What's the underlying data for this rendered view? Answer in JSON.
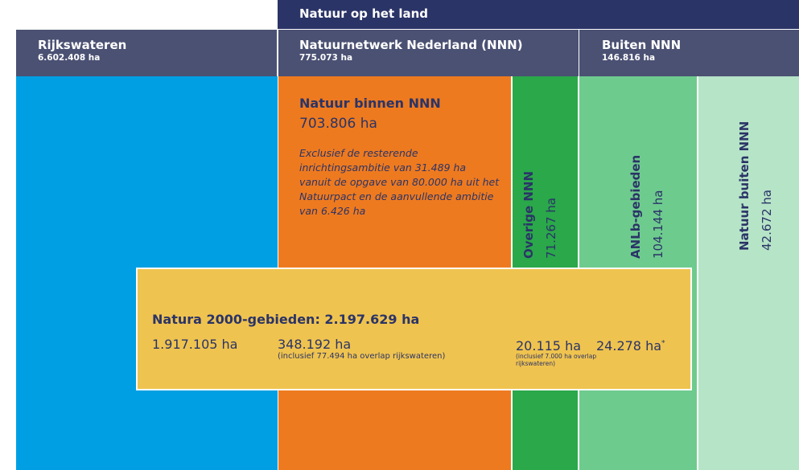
{
  "header": {
    "band": "Natuur op het land",
    "cells": [
      {
        "title": "Rijkswateren",
        "area": "6.602.408 ha"
      },
      {
        "title": "Natuurnetwerk Nederland (NNN)",
        "area": "775.073 ha"
      },
      {
        "title": "Buiten NNN",
        "area": "146.816 ha"
      }
    ]
  },
  "blocks": [
    {
      "title": "Natuur binnen NNN",
      "area": "703.806 ha",
      "note": "Exclusief de resterende inrichtingsambitie van 31.489 ha vanuit de opgave van 80.000 ha uit het Natuurpact en de aanvullende ambitie van 6.426 ha"
    },
    {
      "title": "Overige NNN",
      "area": "71.267 ha"
    },
    {
      "title": "ANLb-gebieden",
      "area": "104.144 ha"
    },
    {
      "title": "Natuur buiten NNN",
      "area": "42.672 ha"
    }
  ],
  "natura": {
    "title": "Natura 2000-gebieden: 2.197.629 ha",
    "parts": [
      {
        "area": "1.917.105 ha"
      },
      {
        "area": "348.192 ha",
        "note": "(inclusief 77.494 ha overlap rijkswateren)"
      },
      {
        "area": "20.115 ha",
        "note": "(inclusief 7.000 ha overlap rijkswateren)"
      },
      {
        "area": "24.278 ha",
        "mark": "*"
      }
    ]
  }
}
